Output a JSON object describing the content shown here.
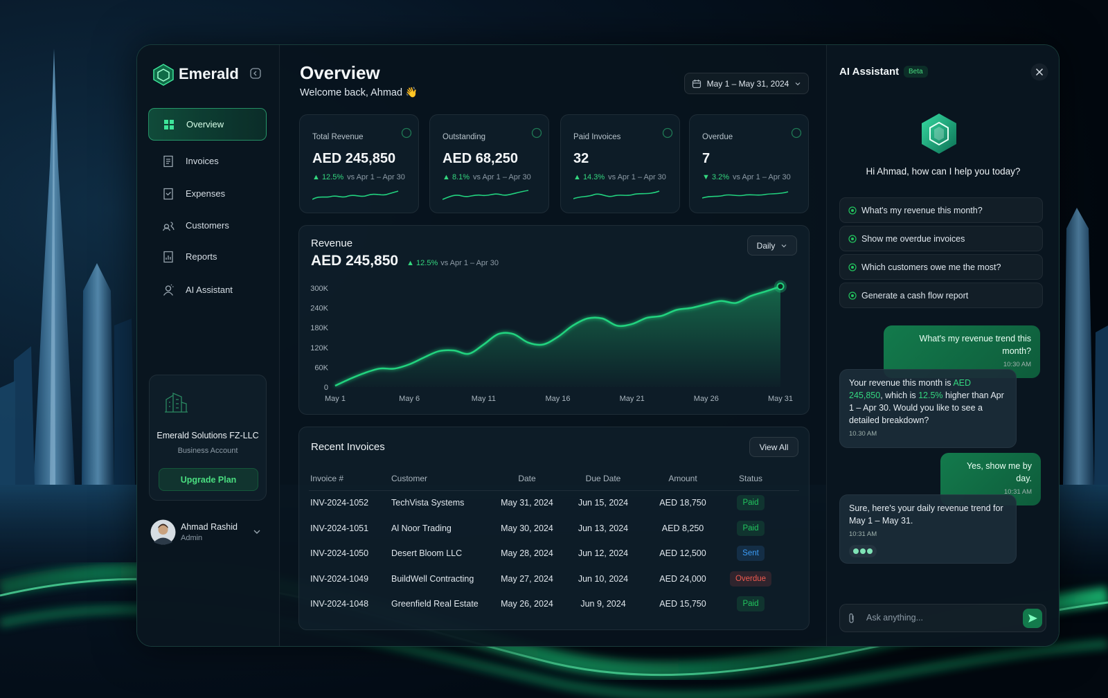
{
  "sidebar": {
    "brand": "Emerald",
    "nav": [
      "Overview",
      "Invoices",
      "Expenses",
      "Customers",
      "Reports",
      "AI Assistant"
    ],
    "company": {
      "name": "Emerald Solutions FZ-LLC",
      "account": "Business Account",
      "button": "Upgrade Plan"
    },
    "user": {
      "name": "Ahmad Rashid",
      "role": "Admin"
    }
  },
  "header": {
    "title": "Overview",
    "welcome": "Welcome back, Ahmad 👋",
    "date_range": "May 1 – May 31, 2024"
  },
  "kpis": [
    {
      "label": "Total Revenue",
      "value": "AED 245,850",
      "change": "▲ 12.5%",
      "compare": "vs Apr 1 – Apr 30"
    },
    {
      "label": "Outstanding",
      "value": "AED 68,250",
      "change": "▲ 8.1%",
      "compare": "vs Apr 1 – Apr 30"
    },
    {
      "label": "Paid Invoices",
      "value": "32",
      "change": "▲ 14.3%",
      "compare": "vs Apr 1 – Apr 30"
    },
    {
      "label": "Overdue",
      "value": "7",
      "change": "▼ 3.2%",
      "compare": "vs Apr 1 – Apr 30"
    }
  ],
  "chart_data": {
    "type": "line",
    "title": "Revenue",
    "headline": "AED 245,850",
    "change": "▲ 12.5%",
    "compare": "vs Apr 1 – Apr 30",
    "period": "Daily",
    "categories": [
      "May 1",
      null,
      null,
      null,
      null,
      "May 6",
      null,
      null,
      null,
      null,
      "May 11",
      null,
      null,
      null,
      null,
      "May 16",
      null,
      null,
      null,
      null,
      "May 21",
      null,
      null,
      null,
      null,
      "May 26",
      null,
      null,
      null,
      null,
      "May 31"
    ],
    "values": [
      4000,
      25000,
      43000,
      56000,
      56000,
      69000,
      90000,
      109000,
      111000,
      101000,
      129000,
      161000,
      161000,
      135000,
      129000,
      152000,
      186000,
      208000,
      208000,
      186000,
      191000,
      210000,
      216000,
      234000,
      240000,
      251000,
      261000,
      255000,
      276000,
      290000,
      305000
    ],
    "color": "#22d37f",
    "ylim": [
      0,
      320000
    ],
    "yticks": [
      0,
      {
        "value": 60000,
        "label": "60K"
      },
      {
        "value": 120000,
        "label": "120K"
      },
      {
        "value": 180000,
        "label": "180K"
      },
      {
        "value": 240000,
        "label": "240K"
      },
      {
        "value": 300000,
        "label": "300K"
      }
    ],
    "grid": false
  },
  "invoices": {
    "title": "Recent Invoices",
    "button": "View All",
    "columns": [
      "Invoice #",
      "Customer",
      "Date",
      "Due Date",
      "Amount",
      "Status"
    ],
    "rows": [
      {
        "invoice": "INV-2024-1052",
        "customer": "TechVista Systems",
        "date": "May 31, 2024",
        "due": "Jun 15, 2024",
        "amount": "AED 18,750",
        "status": "Paid",
        "color": "#22c55e"
      },
      {
        "invoice": "INV-2024-1051",
        "customer": "Al Noor Trading",
        "date": "May 30, 2024",
        "due": "Jun 13, 2024",
        "amount": "AED 8,250",
        "status": "Paid",
        "color": "#22c55e"
      },
      {
        "invoice": "INV-2024-1050",
        "customer": "Desert Bloom LLC",
        "date": "May 28, 2024",
        "due": "Jun 12, 2024",
        "amount": "AED 12,500",
        "status": "Sent",
        "color": "#3b9cf6"
      },
      {
        "invoice": "INV-2024-1049",
        "customer": "BuildWell Contracting",
        "date": "May 27, 2024",
        "due": "Jun 10, 2024",
        "amount": "AED 24,000",
        "status": "Overdue",
        "color": "#f05a4f"
      },
      {
        "invoice": "INV-2024-1048",
        "customer": "Greenfield Real Estate",
        "date": "May 26, 2024",
        "due": "Jun 9, 2024",
        "amount": "AED 15,750",
        "status": "Paid",
        "color": "#22c55e"
      }
    ]
  },
  "assistant": {
    "title": "AI Assistant",
    "badge": "Beta",
    "greeting": "Hi Ahmad, how can I help you today?",
    "suggestions": [
      "What's my revenue this month?",
      "Show me overdue invoices",
      "Which customers owe me the most?",
      "Generate a cash flow report"
    ],
    "messages": [
      {
        "text": "What's my revenue trend this month?",
        "time": "10:30 AM"
      },
      {
        "parts": [
          "Your revenue this month is ",
          "AED 245,850",
          ", which is ",
          "12.5%",
          " higher than Apr 1 – Apr 30. Would you like to see a detailed breakdown?"
        ],
        "time": "10.30 AM"
      },
      {
        "text": "Yes, show me by day.",
        "time": "10:31 AM"
      },
      {
        "text": "Sure, here's your daily revenue trend for May 1 – May 31.",
        "time": "10:31 AM"
      }
    ],
    "placeholder": "Ask anything..."
  }
}
